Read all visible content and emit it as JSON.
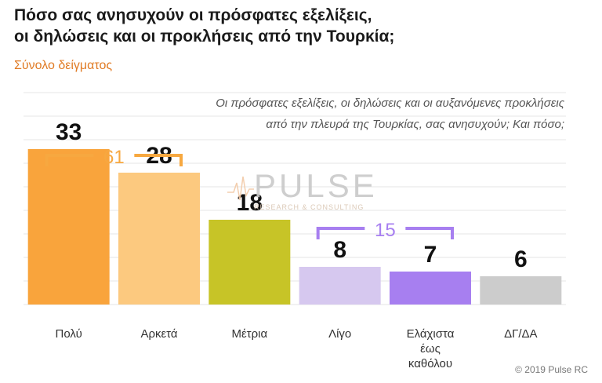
{
  "header": {
    "title_lines": [
      "Πόσο σας ανησυχούν οι πρόσφατες εξελίξεις,",
      "οι δηλώσεις και οι προκλήσεις από την Τουρκία;"
    ],
    "subtitle": "Σύνολο δείγματος"
  },
  "question_lines": [
    "Οι πρόσφατες εξελίξεις, οι δηλώσεις και οι αυξανόμενες προκλήσεις",
    "από την πλευρά της Τουρκίας, σας ανησυχούν; Και πόσο;"
  ],
  "watermark": {
    "main": "PULSE",
    "sub": "RESEARCH & CONSULTING"
  },
  "copyright": "© 2019 Pulse RC",
  "colors": {
    "bars": [
      "#f9a43c",
      "#fcc97f",
      "#c7c427",
      "#d6c8ef",
      "#a77ff0",
      "#cccccc"
    ],
    "bracket_orange": "#f7a840",
    "bracket_purple": "#a77ff0",
    "grid": "#e6e6e6"
  },
  "chart_data": {
    "type": "bar",
    "categories": [
      "Πολύ",
      "Αρκετά",
      "Μέτρια",
      "Λίγο",
      "Ελάχιστα έως καθόλου",
      "ΔΓ/ΔΑ"
    ],
    "category_lines": [
      [
        "Πολύ"
      ],
      [
        "Αρκετά"
      ],
      [
        "Μέτρια"
      ],
      [
        "Λίγο"
      ],
      [
        "Ελάχιστα",
        "έως",
        "καθόλου"
      ],
      [
        "ΔΓ/ΔΑ"
      ]
    ],
    "values": [
      33,
      28,
      18,
      8,
      7,
      6
    ],
    "ylim": [
      0,
      45
    ],
    "grid": true,
    "groups": [
      {
        "label": "61",
        "from": 0,
        "to": 1,
        "color": "#f7a840"
      },
      {
        "label": "15",
        "from": 3,
        "to": 4,
        "color": "#a77ff0"
      }
    ]
  }
}
